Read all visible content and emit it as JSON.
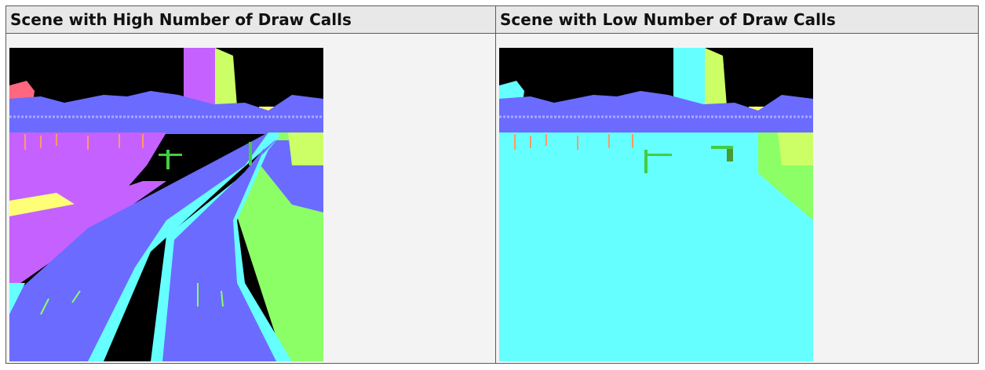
{
  "table": {
    "columns": [
      {
        "header": "Scene with High Number of Draw Calls",
        "image": "semantic-segmentation-render-high-draw-calls"
      },
      {
        "header": "Scene with Low Number of Draw Calls",
        "image": "semantic-segmentation-render-low-draw-calls"
      }
    ]
  },
  "colors": {
    "border": "#5b5b5b",
    "header_bg": "#e8e8e8",
    "cell_bg": "#f3f3f3",
    "sky": "#000000",
    "road": "#6b6bff",
    "ground_cyan": "#66ffff",
    "sidewalk_purple": "#c562ff",
    "yellow": "#ffff77",
    "green": "#8cff66",
    "trees": "#6b6bff",
    "pink": "#ff6680"
  }
}
